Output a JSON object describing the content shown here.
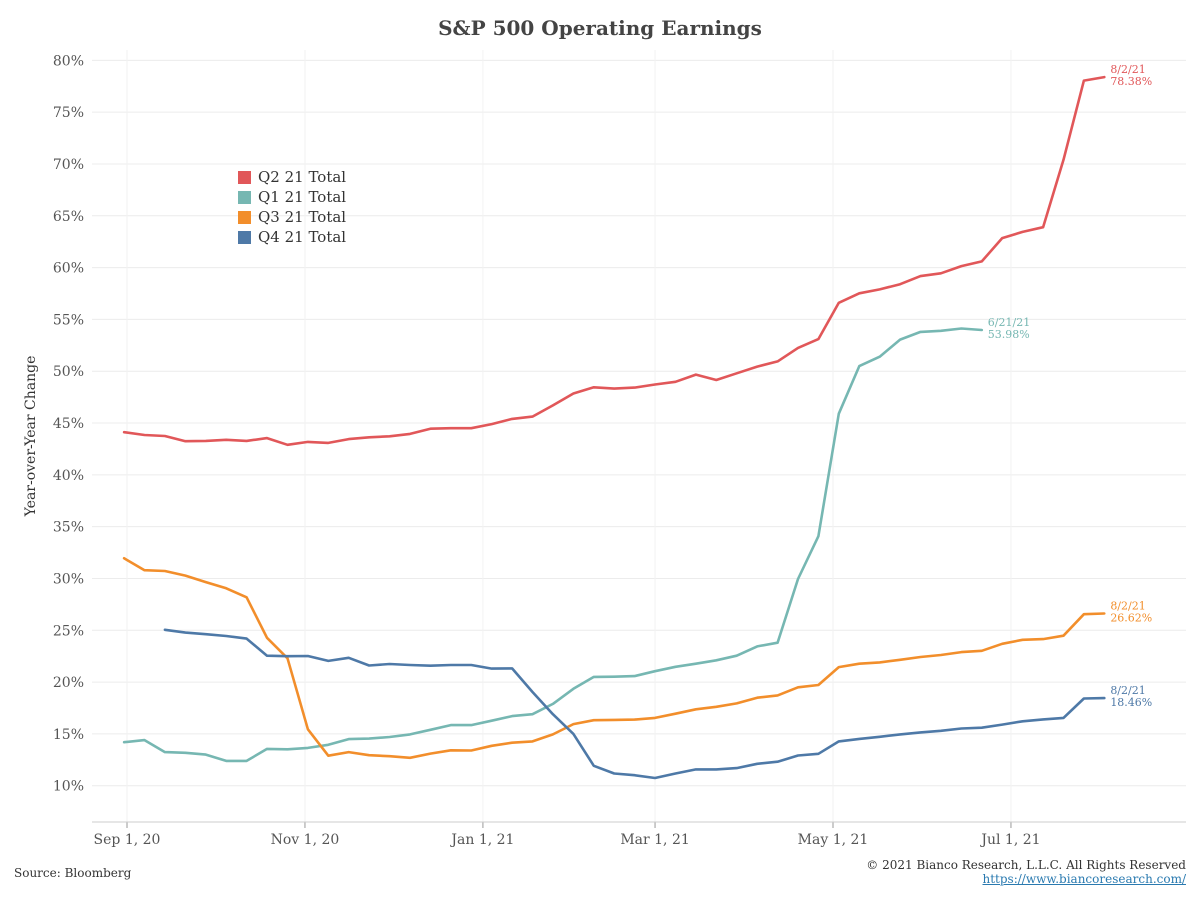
{
  "chart_data": {
    "type": "line",
    "title": "S&P 500 Operating Earnings",
    "xlabel": "",
    "ylabel": "Year-over-Year Change",
    "ylim": [
      0.065,
      0.81
    ],
    "yticks": [
      0.1,
      0.15,
      0.2,
      0.25,
      0.3,
      0.35,
      0.4,
      0.45,
      0.5,
      0.55,
      0.6,
      0.65,
      0.7,
      0.75,
      0.8
    ],
    "ytick_labels": [
      "10%",
      "15%",
      "20%",
      "25%",
      "30%",
      "35%",
      "40%",
      "45%",
      "50%",
      "55%",
      "60%",
      "65%",
      "70%",
      "75%",
      "80%"
    ],
    "xlim": [
      "2020-08-20",
      "2021-08-30"
    ],
    "xticks": [
      "2020-09-01",
      "2020-11-01",
      "2021-01-01",
      "2021-03-01",
      "2021-05-01",
      "2021-07-01"
    ],
    "xtick_labels": [
      "Sep 1, 20",
      "Nov 1, 20",
      "Jan 1, 21",
      "Mar 1, 21",
      "May 1, 21",
      "Jul 1, 21"
    ],
    "grid": true,
    "legend_position": "top-left",
    "series": [
      {
        "name": "Q2 21 Total",
        "color": "#e15759",
        "end_label_date": "8/2/21",
        "end_label_value": "78.38%",
        "points": [
          [
            "2020-08-31",
            0.4412
          ],
          [
            "2020-09-07",
            0.4385
          ],
          [
            "2020-09-14",
            0.4375
          ],
          [
            "2020-09-21",
            0.4325
          ],
          [
            "2020-09-28",
            0.4328
          ],
          [
            "2020-10-05",
            0.4338
          ],
          [
            "2020-10-12",
            0.4328
          ],
          [
            "2020-10-19",
            0.4355
          ],
          [
            "2020-10-26",
            0.429
          ],
          [
            "2020-11-02",
            0.4318
          ],
          [
            "2020-11-09",
            0.4308
          ],
          [
            "2020-11-16",
            0.4345
          ],
          [
            "2020-11-23",
            0.4362
          ],
          [
            "2020-11-30",
            0.4372
          ],
          [
            "2020-12-07",
            0.4395
          ],
          [
            "2020-12-14",
            0.4445
          ],
          [
            "2020-12-21",
            0.445
          ],
          [
            "2020-12-28",
            0.445
          ],
          [
            "2021-01-04",
            0.449
          ],
          [
            "2021-01-11",
            0.454
          ],
          [
            "2021-01-18",
            0.4562
          ],
          [
            "2021-01-25",
            0.467
          ],
          [
            "2021-02-01",
            0.4785
          ],
          [
            "2021-02-08",
            0.4845
          ],
          [
            "2021-02-15",
            0.4832
          ],
          [
            "2021-02-22",
            0.4842
          ],
          [
            "2021-03-01",
            0.4872
          ],
          [
            "2021-03-08",
            0.4898
          ],
          [
            "2021-03-15",
            0.4968
          ],
          [
            "2021-03-22",
            0.4915
          ],
          [
            "2021-03-29",
            0.498
          ],
          [
            "2021-04-05",
            0.5045
          ],
          [
            "2021-04-12",
            0.5095
          ],
          [
            "2021-04-19",
            0.5225
          ],
          [
            "2021-04-26",
            0.531
          ],
          [
            "2021-05-03",
            0.566
          ],
          [
            "2021-05-10",
            0.5752
          ],
          [
            "2021-05-17",
            0.579
          ],
          [
            "2021-05-24",
            0.584
          ],
          [
            "2021-05-31",
            0.5918
          ],
          [
            "2021-06-07",
            0.5945
          ],
          [
            "2021-06-14",
            0.6015
          ],
          [
            "2021-06-21",
            0.606
          ],
          [
            "2021-06-28",
            0.6285
          ],
          [
            "2021-07-05",
            0.6345
          ],
          [
            "2021-07-12",
            0.639
          ],
          [
            "2021-07-19",
            0.704
          ],
          [
            "2021-07-26",
            0.7805
          ],
          [
            "2021-08-02",
            0.7838
          ]
        ]
      },
      {
        "name": "Q1 21 Total",
        "color": "#76b7b2",
        "end_label_date": "6/21/21",
        "end_label_value": "53.98%",
        "points": [
          [
            "2020-08-31",
            0.142
          ],
          [
            "2020-09-07",
            0.144
          ],
          [
            "2020-09-14",
            0.1325
          ],
          [
            "2020-09-21",
            0.1318
          ],
          [
            "2020-09-28",
            0.13
          ],
          [
            "2020-10-05",
            0.124
          ],
          [
            "2020-10-12",
            0.124
          ],
          [
            "2020-10-19",
            0.1355
          ],
          [
            "2020-10-26",
            0.1352
          ],
          [
            "2020-11-02",
            0.1365
          ],
          [
            "2020-11-09",
            0.1395
          ],
          [
            "2020-11-16",
            0.145
          ],
          [
            "2020-11-23",
            0.1455
          ],
          [
            "2020-11-30",
            0.147
          ],
          [
            "2020-12-07",
            0.1495
          ],
          [
            "2020-12-14",
            0.154
          ],
          [
            "2020-12-21",
            0.1585
          ],
          [
            "2020-12-28",
            0.1585
          ],
          [
            "2021-01-04",
            0.1628
          ],
          [
            "2021-01-11",
            0.1672
          ],
          [
            "2021-01-18",
            0.169
          ],
          [
            "2021-01-25",
            0.179
          ],
          [
            "2021-02-01",
            0.1935
          ],
          [
            "2021-02-08",
            0.205
          ],
          [
            "2021-02-15",
            0.2052
          ],
          [
            "2021-02-22",
            0.2058
          ],
          [
            "2021-03-01",
            0.2105
          ],
          [
            "2021-03-08",
            0.2148
          ],
          [
            "2021-03-15",
            0.2178
          ],
          [
            "2021-03-22",
            0.221
          ],
          [
            "2021-03-29",
            0.2255
          ],
          [
            "2021-04-05",
            0.2345
          ],
          [
            "2021-04-12",
            0.238
          ],
          [
            "2021-04-19",
            0.2995
          ],
          [
            "2021-04-26",
            0.3408
          ],
          [
            "2021-05-03",
            0.459
          ],
          [
            "2021-05-10",
            0.505
          ],
          [
            "2021-05-17",
            0.514
          ],
          [
            "2021-05-24",
            0.5305
          ],
          [
            "2021-05-31",
            0.538
          ],
          [
            "2021-06-07",
            0.539
          ],
          [
            "2021-06-14",
            0.5412
          ],
          [
            "2021-06-21",
            0.5398
          ]
        ]
      },
      {
        "name": "Q3 21 Total",
        "color": "#f28e2b",
        "end_label_date": "8/2/21",
        "end_label_value": "26.62%",
        "points": [
          [
            "2020-08-31",
            0.3195
          ],
          [
            "2020-09-07",
            0.308
          ],
          [
            "2020-09-14",
            0.3072
          ],
          [
            "2020-09-21",
            0.3028
          ],
          [
            "2020-09-28",
            0.2965
          ],
          [
            "2020-10-05",
            0.2905
          ],
          [
            "2020-10-12",
            0.2818
          ],
          [
            "2020-10-19",
            0.2428
          ],
          [
            "2020-10-26",
            0.223
          ],
          [
            "2020-11-02",
            0.1545
          ],
          [
            "2020-11-09",
            0.129
          ],
          [
            "2020-11-16",
            0.1325
          ],
          [
            "2020-11-23",
            0.1295
          ],
          [
            "2020-11-30",
            0.1285
          ],
          [
            "2020-12-07",
            0.127
          ],
          [
            "2020-12-14",
            0.131
          ],
          [
            "2020-12-21",
            0.1342
          ],
          [
            "2020-12-28",
            0.134
          ],
          [
            "2021-01-04",
            0.1385
          ],
          [
            "2021-01-11",
            0.1415
          ],
          [
            "2021-01-18",
            0.1428
          ],
          [
            "2021-01-25",
            0.1495
          ],
          [
            "2021-02-01",
            0.1595
          ],
          [
            "2021-02-08",
            0.1632
          ],
          [
            "2021-02-15",
            0.1635
          ],
          [
            "2021-02-22",
            0.1638
          ],
          [
            "2021-03-01",
            0.1655
          ],
          [
            "2021-03-08",
            0.1695
          ],
          [
            "2021-03-15",
            0.1738
          ],
          [
            "2021-03-22",
            0.1762
          ],
          [
            "2021-03-29",
            0.1795
          ],
          [
            "2021-04-05",
            0.185
          ],
          [
            "2021-04-12",
            0.1872
          ],
          [
            "2021-04-19",
            0.195
          ],
          [
            "2021-04-26",
            0.1972
          ],
          [
            "2021-05-03",
            0.2145
          ],
          [
            "2021-05-10",
            0.2178
          ],
          [
            "2021-05-17",
            0.219
          ],
          [
            "2021-05-24",
            0.2215
          ],
          [
            "2021-05-31",
            0.2242
          ],
          [
            "2021-06-07",
            0.2262
          ],
          [
            "2021-06-14",
            0.229
          ],
          [
            "2021-06-21",
            0.2302
          ],
          [
            "2021-06-28",
            0.237
          ],
          [
            "2021-07-05",
            0.2408
          ],
          [
            "2021-07-12",
            0.2415
          ],
          [
            "2021-07-19",
            0.2448
          ],
          [
            "2021-07-26",
            0.2655
          ],
          [
            "2021-08-02",
            0.2662
          ]
        ]
      },
      {
        "name": "Q4 21 Total",
        "color": "#4e79a7",
        "end_label_date": "8/2/21",
        "end_label_value": "18.46%",
        "points": [
          [
            "2020-09-14",
            0.2505
          ],
          [
            "2020-09-21",
            0.2478
          ],
          [
            "2020-09-28",
            0.2462
          ],
          [
            "2020-10-05",
            0.2445
          ],
          [
            "2020-10-12",
            0.242
          ],
          [
            "2020-10-19",
            0.2255
          ],
          [
            "2020-10-26",
            0.225
          ],
          [
            "2020-11-02",
            0.2252
          ],
          [
            "2020-11-09",
            0.2205
          ],
          [
            "2020-11-16",
            0.2235
          ],
          [
            "2020-11-23",
            0.216
          ],
          [
            "2020-11-30",
            0.2175
          ],
          [
            "2020-12-07",
            0.2165
          ],
          [
            "2020-12-14",
            0.2158
          ],
          [
            "2020-12-21",
            0.2165
          ],
          [
            "2020-12-28",
            0.2165
          ],
          [
            "2021-01-04",
            0.213
          ],
          [
            "2021-01-11",
            0.2132
          ],
          [
            "2021-01-18",
            0.1905
          ],
          [
            "2021-01-25",
            0.169
          ],
          [
            "2021-02-01",
            0.15
          ],
          [
            "2021-02-08",
            0.1192
          ],
          [
            "2021-02-15",
            0.1118
          ],
          [
            "2021-02-22",
            0.1102
          ],
          [
            "2021-03-01",
            0.1075
          ],
          [
            "2021-03-08",
            0.1118
          ],
          [
            "2021-03-15",
            0.1158
          ],
          [
            "2021-03-22",
            0.1158
          ],
          [
            "2021-03-29",
            0.117
          ],
          [
            "2021-04-05",
            0.1212
          ],
          [
            "2021-04-12",
            0.1232
          ],
          [
            "2021-04-19",
            0.1292
          ],
          [
            "2021-04-26",
            0.1308
          ],
          [
            "2021-05-03",
            0.1428
          ],
          [
            "2021-05-10",
            0.1452
          ],
          [
            "2021-05-17",
            0.1472
          ],
          [
            "2021-05-24",
            0.1495
          ],
          [
            "2021-05-31",
            0.1515
          ],
          [
            "2021-06-07",
            0.153
          ],
          [
            "2021-06-14",
            0.1552
          ],
          [
            "2021-06-21",
            0.156
          ],
          [
            "2021-06-28",
            0.159
          ],
          [
            "2021-07-05",
            0.1622
          ],
          [
            "2021-07-12",
            0.164
          ],
          [
            "2021-07-19",
            0.1655
          ],
          [
            "2021-07-26",
            0.1842
          ],
          [
            "2021-08-02",
            0.1846
          ]
        ]
      }
    ]
  },
  "footer": {
    "source": "Source: Bloomberg",
    "copyright": "© 2021 Bianco Research, L.L.C. All Rights Reserved",
    "link": "https://www.biancoresearch.com/"
  }
}
